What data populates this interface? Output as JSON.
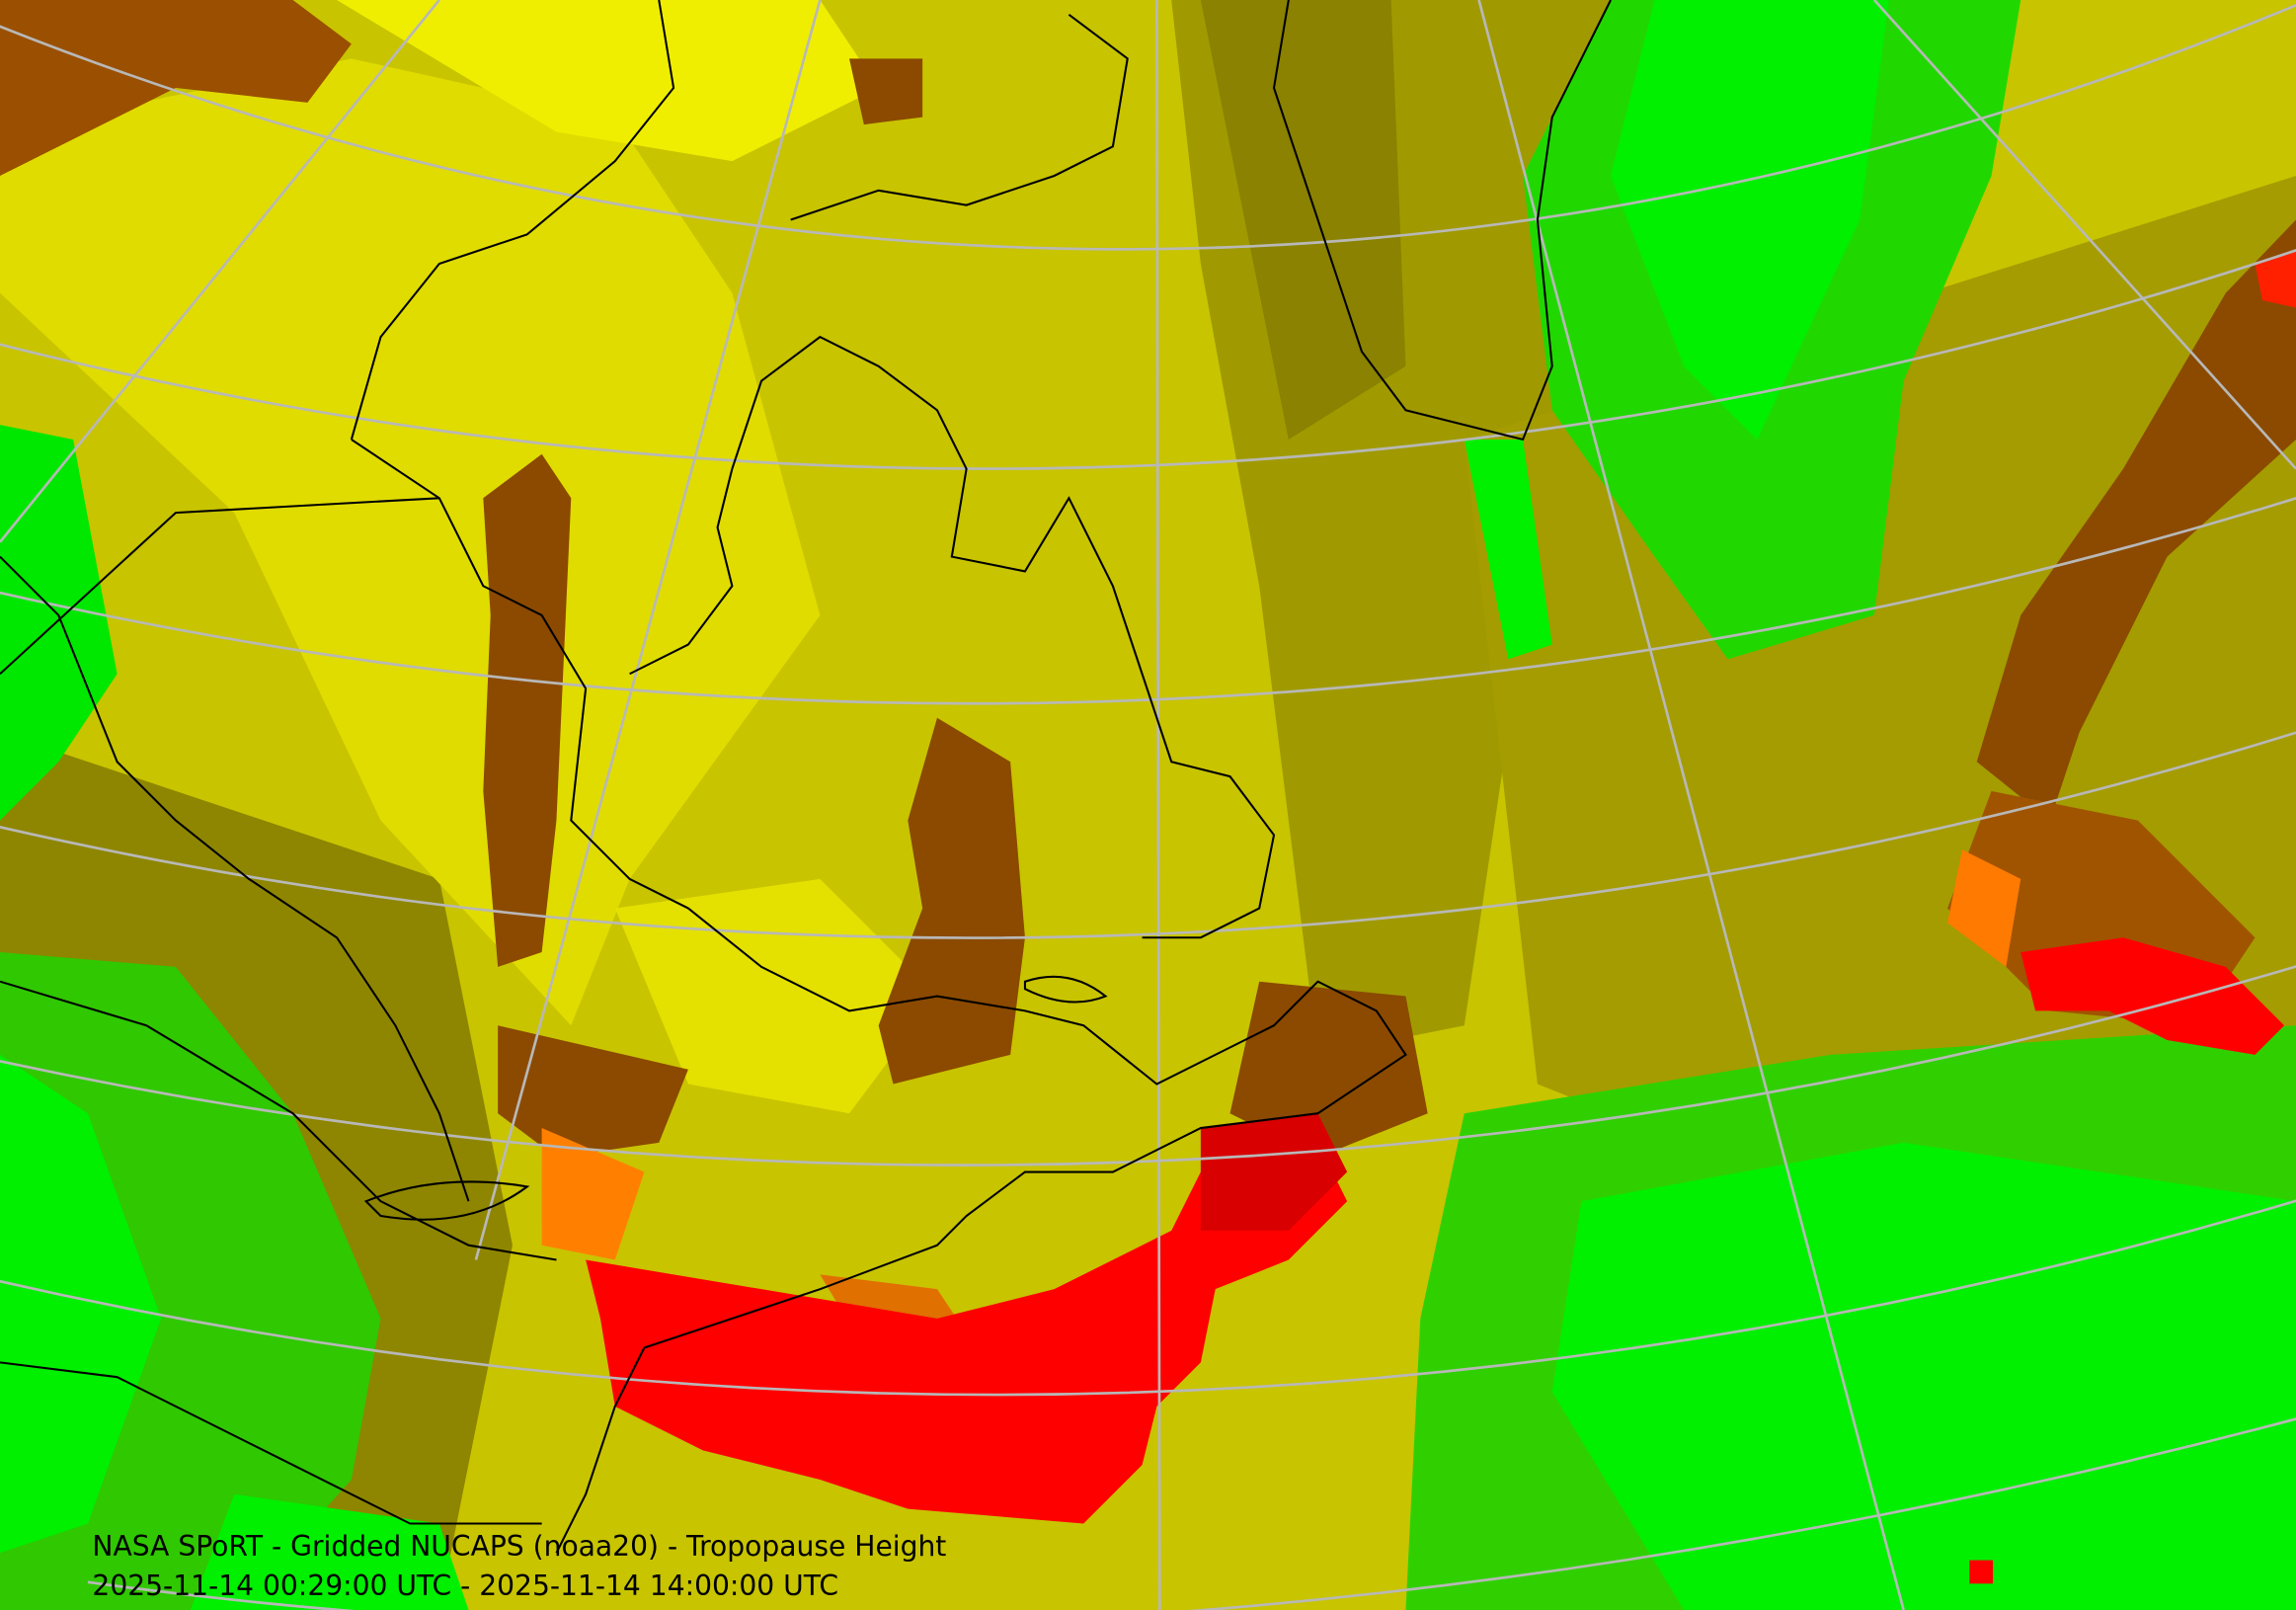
{
  "title": "NASA SPoRT - Gridded NUCAPS (noaa20) - Tropopause Height",
  "time_range": "2025-11-14 00:29:00 UTC - 2025-11-14 14:00:00 UTC"
}
